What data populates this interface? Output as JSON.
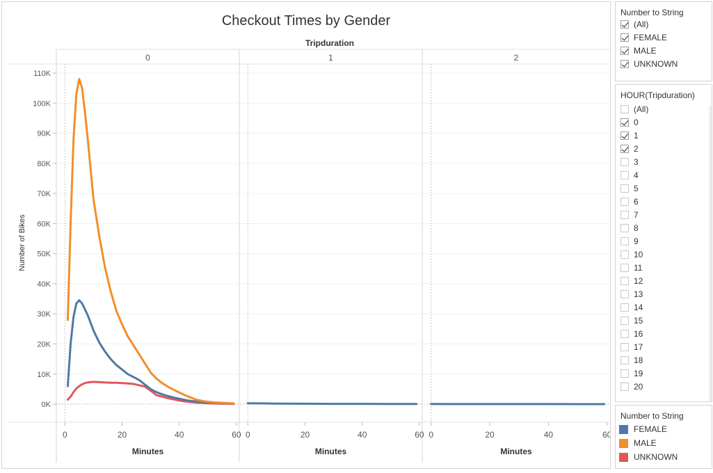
{
  "title": "Checkout Times by Gender",
  "colors": {
    "FEMALE": "#4e79a7",
    "MALE": "#f28e2b",
    "UNKNOWN": "#e15759"
  },
  "chart_data": {
    "type": "line",
    "title": "Checkout Times by Gender",
    "column_header": "Tripduration",
    "panels": [
      "0",
      "1",
      "2"
    ],
    "xlabel": "Minutes",
    "ylabel": "Number of Bikes",
    "xlim": [
      -3,
      61
    ],
    "ylim": [
      -6000,
      113000
    ],
    "x_ticks": [
      "0",
      "20",
      "40",
      "60"
    ],
    "y_ticks": [
      "0K",
      "10K",
      "20K",
      "30K",
      "40K",
      "50K",
      "60K",
      "70K",
      "80K",
      "90K",
      "100K",
      "110K"
    ],
    "y_tick_values": [
      0,
      10000,
      20000,
      30000,
      40000,
      50000,
      60000,
      70000,
      80000,
      90000,
      100000,
      110000
    ],
    "grid": true,
    "legend_title": "Number to String",
    "legend_position": "right",
    "series": [
      {
        "name": "MALE",
        "panel": 0,
        "x": [
          1,
          2,
          3,
          4,
          5,
          6,
          7,
          8,
          9,
          10,
          12,
          14,
          16,
          18,
          20,
          22,
          24,
          26,
          28,
          30,
          32,
          34,
          36,
          38,
          40,
          42,
          44,
          46,
          48,
          50,
          52,
          54,
          56,
          58,
          59
        ],
        "values": [
          28000,
          60000,
          88000,
          103000,
          108000,
          105000,
          97000,
          88000,
          78000,
          68000,
          56000,
          45500,
          37500,
          31000,
          26500,
          22500,
          19500,
          16500,
          13500,
          10500,
          8500,
          7000,
          5800,
          4800,
          3900,
          3000,
          2200,
          1500,
          1100,
          800,
          600,
          500,
          400,
          300,
          300
        ]
      },
      {
        "name": "FEMALE",
        "panel": 0,
        "x": [
          1,
          2,
          3,
          4,
          5,
          6,
          7,
          8,
          9,
          10,
          12,
          14,
          16,
          18,
          20,
          22,
          24,
          26,
          28,
          30,
          32,
          34,
          36,
          38,
          40,
          42,
          44,
          46,
          48,
          50,
          52,
          54,
          56,
          58,
          59
        ],
        "values": [
          6000,
          20000,
          29000,
          33500,
          34500,
          33500,
          31500,
          29500,
          27000,
          24500,
          20500,
          17500,
          15000,
          13000,
          11500,
          10000,
          9000,
          8000,
          6500,
          5000,
          4000,
          3300,
          2700,
          2200,
          1800,
          1400,
          1100,
          900,
          700,
          550,
          450,
          350,
          300,
          250,
          250
        ]
      },
      {
        "name": "UNKNOWN",
        "panel": 0,
        "x": [
          1,
          2,
          3,
          4,
          5,
          6,
          7,
          8,
          9,
          10,
          12,
          14,
          16,
          18,
          20,
          22,
          24,
          26,
          28,
          30,
          32,
          34,
          36,
          38,
          40,
          42,
          44,
          46,
          48,
          50,
          52,
          54,
          56,
          58,
          59
        ],
        "values": [
          1500,
          2500,
          4000,
          5200,
          6000,
          6600,
          7000,
          7200,
          7300,
          7400,
          7300,
          7200,
          7100,
          7100,
          7000,
          6900,
          6700,
          6300,
          5800,
          4500,
          3000,
          2500,
          2000,
          1600,
          1200,
          900,
          700,
          500,
          400,
          300,
          250,
          200,
          150,
          120,
          100
        ]
      },
      {
        "name": "FEMALE",
        "panel": 1,
        "x": [
          0,
          10,
          20,
          30,
          40,
          50,
          59
        ],
        "values": [
          300,
          200,
          150,
          100,
          100,
          80,
          80
        ]
      },
      {
        "name": "FEMALE",
        "panel": 2,
        "x": [
          0,
          10,
          20,
          30,
          40,
          50,
          59
        ],
        "values": [
          50,
          40,
          30,
          20,
          20,
          10,
          10
        ]
      }
    ]
  },
  "filter_gender": {
    "title": "Number to String",
    "items": [
      {
        "label": "(All)",
        "checked": true
      },
      {
        "label": "FEMALE",
        "checked": true
      },
      {
        "label": "MALE",
        "checked": true
      },
      {
        "label": "UNKNOWN",
        "checked": true
      }
    ]
  },
  "filter_hour": {
    "title": "HOUR(Tripduration)",
    "items": [
      {
        "label": "(All)",
        "checked": false
      },
      {
        "label": "0",
        "checked": true
      },
      {
        "label": "1",
        "checked": true
      },
      {
        "label": "2",
        "checked": true
      },
      {
        "label": "3",
        "checked": false
      },
      {
        "label": "4",
        "checked": false
      },
      {
        "label": "5",
        "checked": false
      },
      {
        "label": "6",
        "checked": false
      },
      {
        "label": "7",
        "checked": false
      },
      {
        "label": "8",
        "checked": false
      },
      {
        "label": "9",
        "checked": false
      },
      {
        "label": "10",
        "checked": false
      },
      {
        "label": "11",
        "checked": false
      },
      {
        "label": "12",
        "checked": false
      },
      {
        "label": "13",
        "checked": false
      },
      {
        "label": "14",
        "checked": false
      },
      {
        "label": "15",
        "checked": false
      },
      {
        "label": "16",
        "checked": false
      },
      {
        "label": "17",
        "checked": false
      },
      {
        "label": "18",
        "checked": false
      },
      {
        "label": "19",
        "checked": false
      },
      {
        "label": "20",
        "checked": false
      }
    ]
  },
  "legend": {
    "title": "Number to String",
    "items": [
      {
        "label": "FEMALE",
        "color": "#4e79a7"
      },
      {
        "label": "MALE",
        "color": "#f28e2b"
      },
      {
        "label": "UNKNOWN",
        "color": "#e15759"
      }
    ]
  }
}
